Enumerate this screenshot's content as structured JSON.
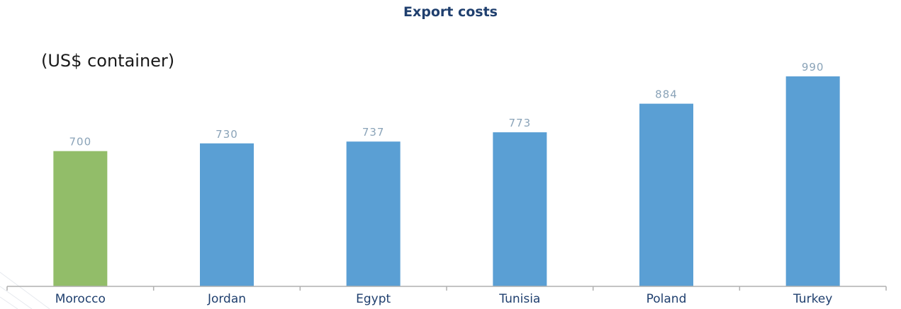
{
  "chart_data": {
    "type": "bar",
    "title": "Export costs",
    "unit_label": "(US$ container)",
    "categories": [
      "Morocco",
      "Jordan",
      "Egypt",
      "Tunisia",
      "Poland",
      "Turkey"
    ],
    "values": [
      700,
      730,
      737,
      773,
      884,
      990
    ],
    "bar_colors": [
      "#92bd69",
      "#5a9fd4",
      "#5a9fd4",
      "#5a9fd4",
      "#5a9fd4",
      "#5a9fd4"
    ],
    "ylim": [
      0,
      1000
    ],
    "grid": false,
    "legend": "none",
    "colors": {
      "title": "#1f3f6e",
      "value_label": "#8aa3b8",
      "category_label": "#1f3f6e",
      "axis": "#b0b0b0"
    }
  }
}
